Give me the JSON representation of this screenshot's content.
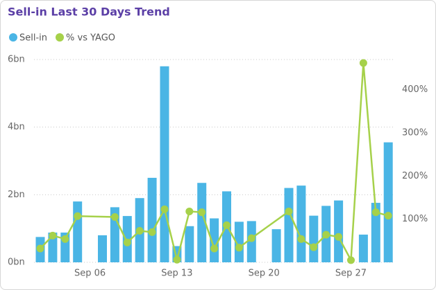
{
  "chart_data": {
    "type": "bar-line",
    "title": "Sell-in Last 30 Days Trend",
    "x": [
      "Sep 02",
      "Sep 03",
      "Sep 04",
      "Sep 05",
      "Sep 06",
      "Sep 07",
      "Sep 08",
      "Sep 09",
      "Sep 10",
      "Sep 11",
      "Sep 12",
      "Sep 13",
      "Sep 14",
      "Sep 15",
      "Sep 16",
      "Sep 17",
      "Sep 18",
      "Sep 19",
      "Sep 20",
      "Sep 21",
      "Sep 22",
      "Sep 23",
      "Sep 24",
      "Sep 25",
      "Sep 26",
      "Sep 27",
      "Sep 28",
      "Sep 29",
      "Sep 30"
    ],
    "xticks": [
      "Sep 06",
      "Sep 13",
      "Sep 20",
      "Sep 27"
    ],
    "ylim": [
      0,
      6
    ],
    "yticks": [
      {
        "value": 0,
        "label": "0bn"
      },
      {
        "value": 2,
        "label": "2bn"
      },
      {
        "value": 4,
        "label": "4bn"
      },
      {
        "value": 6,
        "label": "6bn"
      }
    ],
    "y2lim": [
      0,
      470
    ],
    "y2ticks": [
      {
        "value": 100,
        "label": "100%"
      },
      {
        "value": 200,
        "label": "200%"
      },
      {
        "value": 300,
        "label": "300%"
      },
      {
        "value": 400,
        "label": "400%"
      }
    ],
    "grid": true,
    "legend": "top-left",
    "series": [
      {
        "name": "Sell-in",
        "type": "bar",
        "color": "#4ab5e5",
        "values": [
          0.75,
          0.88,
          0.88,
          1.8,
          null,
          0.8,
          1.63,
          1.37,
          1.9,
          2.5,
          5.8,
          0.48,
          1.07,
          2.35,
          1.3,
          2.1,
          1.2,
          1.22,
          null,
          0.98,
          2.2,
          2.27,
          1.38,
          1.67,
          1.83,
          null,
          0.82,
          1.76,
          3.55
        ]
      },
      {
        "name": "% vs YAGO",
        "type": "line",
        "axis": "y2",
        "color": "#a6d14a",
        "x": [
          "Sep 02",
          "Sep 03",
          "Sep 04",
          "Sep 05",
          "Sep 08",
          "Sep 09",
          "Sep 10",
          "Sep 11",
          "Sep 12",
          "Sep 13",
          "Sep 14",
          "Sep 15",
          "Sep 16",
          "Sep 17",
          "Sep 18",
          "Sep 19",
          "Sep 22",
          "Sep 23",
          "Sep 24",
          "Sep 25",
          "Sep 26",
          "Sep 27",
          "Sep 28",
          "Sep 29",
          "Sep 30"
        ],
        "values": [
          32,
          62,
          54,
          107,
          105,
          46,
          73,
          70,
          123,
          6,
          118,
          116,
          32,
          86,
          34,
          56,
          118,
          54,
          35,
          64,
          59,
          5,
          462,
          116,
          108
        ]
      }
    ]
  }
}
